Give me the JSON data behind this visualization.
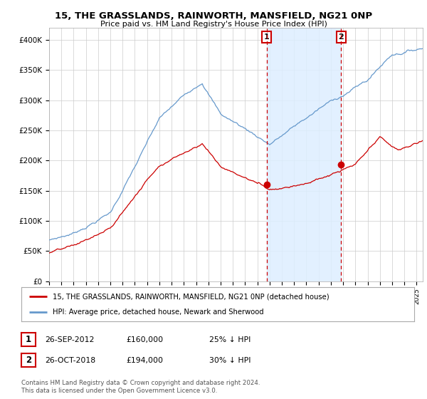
{
  "title": "15, THE GRASSLANDS, RAINWORTH, MANSFIELD, NG21 0NP",
  "subtitle": "Price paid vs. HM Land Registry's House Price Index (HPI)",
  "ylabel_ticks": [
    "£0",
    "£50K",
    "£100K",
    "£150K",
    "£200K",
    "£250K",
    "£300K",
    "£350K",
    "£400K"
  ],
  "ytick_values": [
    0,
    50000,
    100000,
    150000,
    200000,
    250000,
    300000,
    350000,
    400000
  ],
  "ylim": [
    0,
    420000
  ],
  "xlim_start": 1995.0,
  "xlim_end": 2025.5,
  "legend_line1": "15, THE GRASSLANDS, RAINWORTH, MANSFIELD, NG21 0NP (detached house)",
  "legend_line2": "HPI: Average price, detached house, Newark and Sherwood",
  "sale1_date": "26-SEP-2012",
  "sale1_price": "£160,000",
  "sale1_hpi": "25% ↓ HPI",
  "sale1_year": 2012.75,
  "sale1_value": 160000,
  "sale2_date": "26-OCT-2018",
  "sale2_price": "£194,000",
  "sale2_hpi": "30% ↓ HPI",
  "sale2_year": 2018.83,
  "sale2_value": 194000,
  "red_color": "#cc0000",
  "blue_color": "#6699cc",
  "blue_fill": "#ddeeff",
  "footnote": "Contains HM Land Registry data © Crown copyright and database right 2024.\nThis data is licensed under the Open Government Licence v3.0.",
  "background_color": "#ffffff",
  "grid_color": "#cccccc"
}
